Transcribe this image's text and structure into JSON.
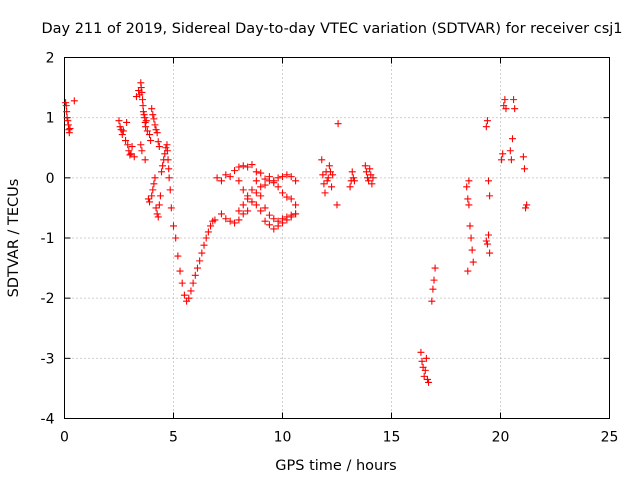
{
  "chart_data": {
    "type": "scatter",
    "title": "Day 211 of 2019, Sidereal Day-to-day VTEC variation (SDTVAR) for receiver csj1",
    "xlabel": "GPS time / hours",
    "ylabel": "SDTVAR / TECUs",
    "xlim": [
      0,
      25
    ],
    "ylim": [
      -4,
      2
    ],
    "xticks": [
      0,
      5,
      10,
      15,
      20,
      25
    ],
    "yticks": [
      -4,
      -3,
      -2,
      -1,
      0,
      1,
      2
    ],
    "xtick_labels": [
      "0",
      "5",
      "10",
      "15",
      "20",
      "25"
    ],
    "ytick_labels": [
      "-4",
      "-3",
      "-2",
      "-1",
      "0",
      "1",
      "2"
    ],
    "grid": true,
    "marker": "+",
    "color": "#ff0000",
    "series": [
      {
        "name": "SDTVAR",
        "points": [
          [
            0.05,
            1.25
          ],
          [
            0.08,
            1.2
          ],
          [
            0.1,
            1.1
          ],
          [
            0.12,
            1.0
          ],
          [
            0.15,
            0.95
          ],
          [
            0.18,
            0.88
          ],
          [
            0.2,
            0.8
          ],
          [
            0.22,
            0.75
          ],
          [
            0.25,
            0.82
          ],
          [
            0.45,
            1.28
          ],
          [
            2.5,
            0.95
          ],
          [
            2.55,
            0.85
          ],
          [
            2.6,
            0.8
          ],
          [
            2.65,
            0.72
          ],
          [
            2.7,
            0.78
          ],
          [
            2.8,
            0.62
          ],
          [
            2.85,
            0.92
          ],
          [
            2.9,
            0.55
          ],
          [
            2.95,
            0.45
          ],
          [
            3.0,
            0.38
          ],
          [
            3.05,
            0.4
          ],
          [
            3.1,
            0.52
          ],
          [
            3.2,
            0.35
          ],
          [
            3.3,
            1.35
          ],
          [
            3.4,
            1.45
          ],
          [
            3.45,
            1.38
          ],
          [
            3.5,
            1.58
          ],
          [
            3.52,
            1.5
          ],
          [
            3.55,
            1.42
          ],
          [
            3.58,
            1.3
          ],
          [
            3.6,
            1.2
          ],
          [
            3.62,
            1.1
          ],
          [
            3.65,
            1.05
          ],
          [
            3.68,
            1.0
          ],
          [
            3.7,
            0.92
          ],
          [
            3.72,
            0.85
          ],
          [
            3.75,
            0.95
          ],
          [
            3.8,
            0.78
          ],
          [
            3.9,
            0.72
          ],
          [
            3.95,
            0.62
          ],
          [
            4.0,
            1.15
          ],
          [
            4.05,
            1.05
          ],
          [
            4.1,
            0.98
          ],
          [
            4.15,
            0.88
          ],
          [
            4.2,
            0.8
          ],
          [
            4.25,
            0.75
          ],
          [
            4.3,
            0.6
          ],
          [
            4.35,
            0.52
          ],
          [
            3.5,
            0.55
          ],
          [
            3.55,
            0.45
          ],
          [
            3.7,
            0.3
          ],
          [
            3.85,
            -0.35
          ],
          [
            3.9,
            -0.4
          ],
          [
            4.0,
            -0.3
          ],
          [
            4.05,
            -0.2
          ],
          [
            4.1,
            -0.1
          ],
          [
            4.15,
            0.0
          ],
          [
            4.2,
            -0.5
          ],
          [
            4.25,
            -0.6
          ],
          [
            4.3,
            -0.65
          ],
          [
            4.35,
            -0.45
          ],
          [
            4.4,
            -0.3
          ],
          [
            4.45,
            0.1
          ],
          [
            4.5,
            0.2
          ],
          [
            4.55,
            0.3
          ],
          [
            4.6,
            0.4
          ],
          [
            4.65,
            0.5
          ],
          [
            4.7,
            0.55
          ],
          [
            4.72,
            0.45
          ],
          [
            4.75,
            0.3
          ],
          [
            4.78,
            0.15
          ],
          [
            4.8,
            0.0
          ],
          [
            4.85,
            -0.2
          ],
          [
            4.9,
            -0.5
          ],
          [
            5.0,
            -0.8
          ],
          [
            5.1,
            -1.0
          ],
          [
            5.2,
            -1.3
          ],
          [
            5.3,
            -1.55
          ],
          [
            5.4,
            -1.75
          ],
          [
            5.5,
            -1.95
          ],
          [
            5.6,
            -2.05
          ],
          [
            5.7,
            -2.0
          ],
          [
            5.8,
            -1.88
          ],
          [
            5.9,
            -1.75
          ],
          [
            6.0,
            -1.62
          ],
          [
            6.1,
            -1.5
          ],
          [
            6.2,
            -1.38
          ],
          [
            6.3,
            -1.25
          ],
          [
            6.4,
            -1.12
          ],
          [
            6.5,
            -1.0
          ],
          [
            6.6,
            -0.9
          ],
          [
            6.7,
            -0.8
          ],
          [
            6.8,
            -0.72
          ],
          [
            6.9,
            -0.7
          ],
          [
            7.0,
            0.0
          ],
          [
            7.2,
            -0.05
          ],
          [
            7.4,
            0.05
          ],
          [
            7.6,
            0.02
          ],
          [
            7.8,
            0.12
          ],
          [
            8.0,
            0.18
          ],
          [
            8.2,
            0.2
          ],
          [
            8.4,
            0.18
          ],
          [
            8.6,
            0.22
          ],
          [
            8.8,
            0.1
          ],
          [
            9.0,
            0.08
          ],
          [
            9.2,
            -0.02
          ],
          [
            9.4,
            0.02
          ],
          [
            9.6,
            -0.05
          ],
          [
            9.8,
            0.0
          ],
          [
            10.0,
            0.02
          ],
          [
            10.2,
            0.05
          ],
          [
            10.4,
            0.02
          ],
          [
            10.6,
            -0.05
          ],
          [
            7.2,
            -0.6
          ],
          [
            7.4,
            -0.68
          ],
          [
            7.6,
            -0.72
          ],
          [
            7.8,
            -0.75
          ],
          [
            8.0,
            -0.7
          ],
          [
            8.2,
            -0.6
          ],
          [
            8.4,
            -0.55
          ],
          [
            8.6,
            -0.4
          ],
          [
            8.8,
            -0.25
          ],
          [
            9.0,
            -0.15
          ],
          [
            9.2,
            -0.12
          ],
          [
            9.4,
            -0.05
          ],
          [
            9.6,
            -0.08
          ],
          [
            9.8,
            -0.15
          ],
          [
            10.0,
            -0.25
          ],
          [
            10.2,
            -0.32
          ],
          [
            10.4,
            -0.35
          ],
          [
            10.6,
            -0.45
          ],
          [
            8.0,
            -0.55
          ],
          [
            8.2,
            -0.45
          ],
          [
            8.4,
            -0.35
          ],
          [
            8.6,
            -0.2
          ],
          [
            8.8,
            -0.05
          ],
          [
            9.0,
            -0.3
          ],
          [
            9.2,
            -0.5
          ],
          [
            9.4,
            -0.62
          ],
          [
            9.6,
            -0.68
          ],
          [
            9.8,
            -0.72
          ],
          [
            10.0,
            -0.68
          ],
          [
            10.2,
            -0.65
          ],
          [
            10.4,
            -0.62
          ],
          [
            10.6,
            -0.6
          ],
          [
            8.0,
            -0.05
          ],
          [
            8.2,
            -0.2
          ],
          [
            8.4,
            -0.3
          ],
          [
            8.6,
            -0.4
          ],
          [
            8.8,
            -0.45
          ],
          [
            9.0,
            -0.55
          ],
          [
            9.2,
            -0.72
          ],
          [
            9.4,
            -0.78
          ],
          [
            9.6,
            -0.85
          ],
          [
            9.8,
            -0.8
          ],
          [
            10.0,
            -0.75
          ],
          [
            10.2,
            -0.7
          ],
          [
            10.4,
            -0.65
          ],
          [
            10.6,
            -0.6
          ],
          [
            11.8,
            0.3
          ],
          [
            11.85,
            0.05
          ],
          [
            11.9,
            -0.1
          ],
          [
            11.95,
            -0.25
          ],
          [
            12.0,
            0.1
          ],
          [
            12.05,
            -0.05
          ],
          [
            12.1,
            0.0
          ],
          [
            12.15,
            0.2
          ],
          [
            12.2,
            0.1
          ],
          [
            12.25,
            -0.15
          ],
          [
            12.3,
            0.05
          ],
          [
            12.5,
            -0.45
          ],
          [
            12.55,
            0.9
          ],
          [
            13.1,
            -0.15
          ],
          [
            13.15,
            -0.05
          ],
          [
            13.2,
            0.1
          ],
          [
            13.25,
            0.0
          ],
          [
            13.3,
            -0.05
          ],
          [
            13.8,
            0.2
          ],
          [
            13.85,
            0.1
          ],
          [
            13.9,
            0.0
          ],
          [
            13.95,
            -0.05
          ],
          [
            14.0,
            0.15
          ],
          [
            14.05,
            0.05
          ],
          [
            14.1,
            -0.1
          ],
          [
            14.15,
            0.0
          ],
          [
            16.35,
            -2.9
          ],
          [
            16.4,
            -3.05
          ],
          [
            16.45,
            -3.15
          ],
          [
            16.5,
            -3.3
          ],
          [
            16.55,
            -3.2
          ],
          [
            16.6,
            -3.0
          ],
          [
            16.65,
            -3.35
          ],
          [
            16.7,
            -3.4
          ],
          [
            16.85,
            -2.05
          ],
          [
            16.9,
            -1.85
          ],
          [
            16.95,
            -1.7
          ],
          [
            17.0,
            -1.5
          ],
          [
            18.45,
            -0.15
          ],
          [
            18.5,
            -0.35
          ],
          [
            18.55,
            -0.45
          ],
          [
            18.6,
            -0.8
          ],
          [
            18.65,
            -1.0
          ],
          [
            18.7,
            -1.2
          ],
          [
            18.75,
            -1.4
          ],
          [
            18.5,
            -1.55
          ],
          [
            18.55,
            -0.05
          ],
          [
            19.35,
            0.85
          ],
          [
            19.4,
            0.95
          ],
          [
            19.45,
            -0.05
          ],
          [
            19.5,
            -0.3
          ],
          [
            19.35,
            -1.05
          ],
          [
            19.4,
            -1.1
          ],
          [
            19.45,
            -0.95
          ],
          [
            19.5,
            -1.25
          ],
          [
            20.05,
            0.3
          ],
          [
            20.1,
            0.4
          ],
          [
            20.15,
            1.2
          ],
          [
            20.2,
            1.3
          ],
          [
            20.25,
            1.15
          ],
          [
            20.45,
            0.45
          ],
          [
            20.5,
            0.3
          ],
          [
            20.55,
            0.65
          ],
          [
            20.6,
            1.3
          ],
          [
            20.65,
            1.15
          ],
          [
            21.05,
            0.35
          ],
          [
            21.1,
            0.15
          ],
          [
            21.15,
            -0.5
          ],
          [
            21.2,
            -0.45
          ]
        ]
      }
    ]
  }
}
